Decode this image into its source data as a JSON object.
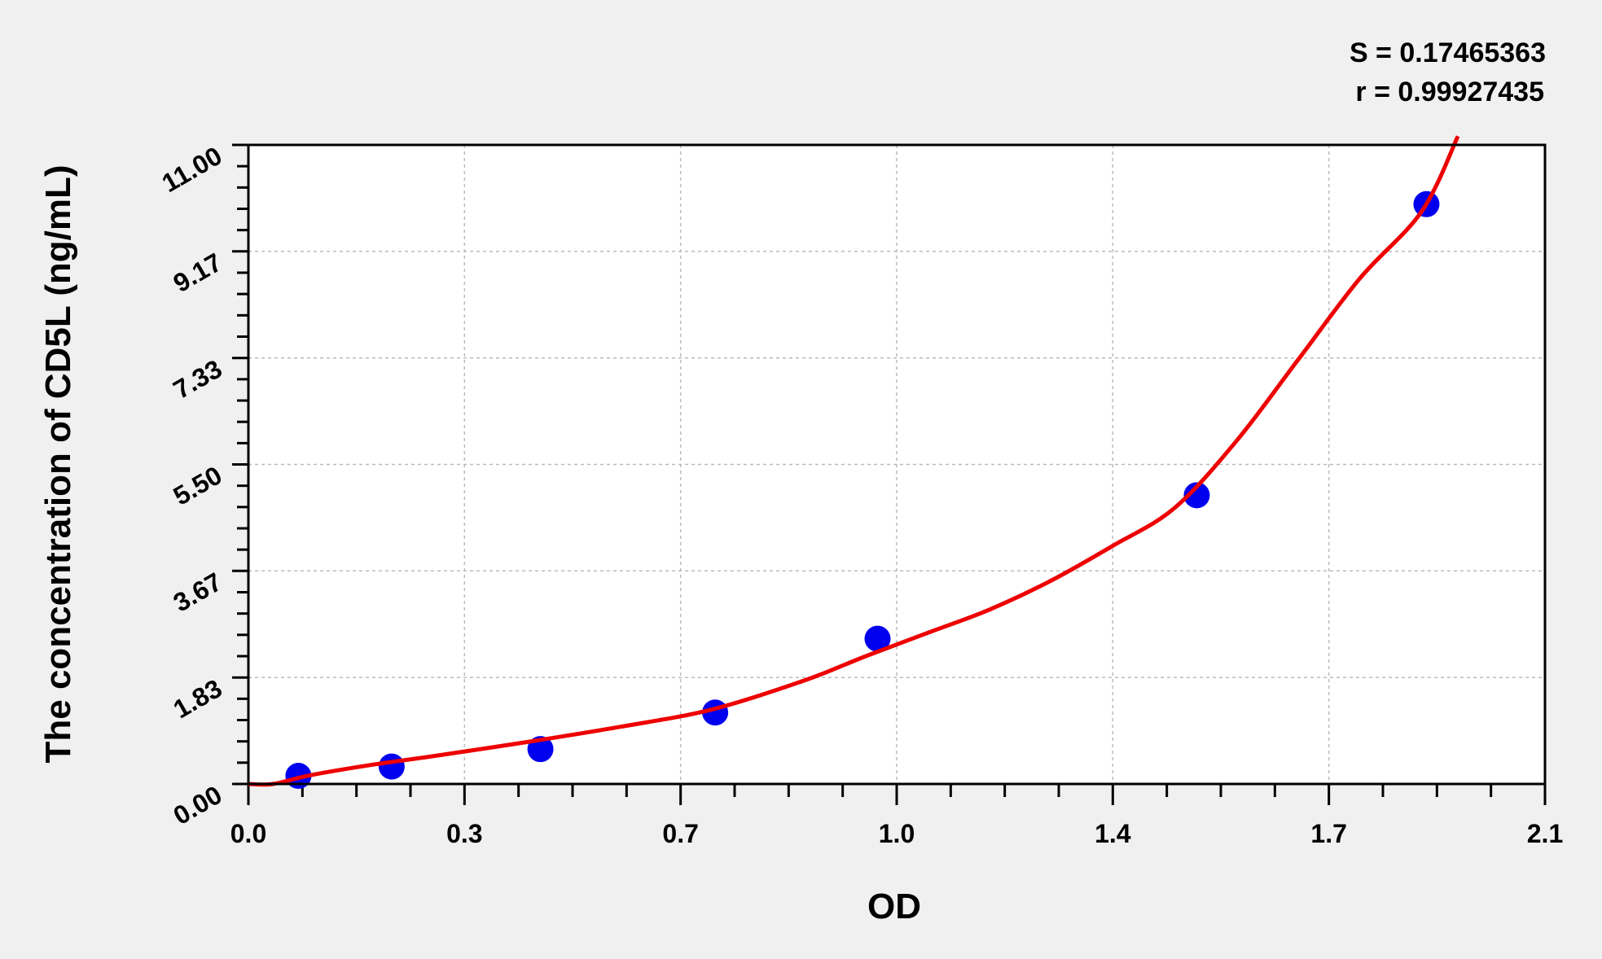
{
  "chart_data": {
    "type": "scatter",
    "title": "",
    "xlabel": "OD",
    "ylabel": "The concentration of CD5L (ng/mL)",
    "xlim": [
      0,
      2.1
    ],
    "ylim": [
      0,
      11
    ],
    "x_ticks": [
      "0.0",
      "0.3",
      "0.7",
      "1.0",
      "1.4",
      "1.7",
      "2.1"
    ],
    "x_tick_values": [
      0,
      0.35,
      0.7,
      1.05,
      1.4,
      1.75,
      2.1
    ],
    "y_ticks": [
      "0.00",
      "1.83",
      "3.67",
      "5.50",
      "7.33",
      "9.17",
      "11.00"
    ],
    "y_tick_values": [
      0,
      1.833,
      3.667,
      5.5,
      7.333,
      9.167,
      11
    ],
    "grid": true,
    "annotations": [
      "S = 0.17465363",
      "r = 0.99927435"
    ],
    "points": {
      "x": [
        0.081,
        0.232,
        0.473,
        0.756,
        1.019,
        1.536,
        1.908
      ],
      "y": [
        0.14,
        0.3,
        0.6,
        1.23,
        2.5,
        4.97,
        9.98
      ],
      "color": "#0000ee"
    },
    "fit_curve": {
      "x": [
        0,
        0.04,
        0.1,
        0.2,
        0.3,
        0.45,
        0.6,
        0.75,
        0.9,
        1.0,
        1.1,
        1.2,
        1.3,
        1.4,
        1.5,
        1.6,
        1.7,
        1.8,
        1.9,
        1.959
      ],
      "y": [
        0,
        0.0,
        0.15,
        0.33,
        0.48,
        0.72,
        0.98,
        1.28,
        1.78,
        2.2,
        2.6,
        3.0,
        3.5,
        4.1,
        4.75,
        5.9,
        7.3,
        8.7,
        9.85,
        11.15
      ],
      "color": "#ee0000"
    }
  }
}
